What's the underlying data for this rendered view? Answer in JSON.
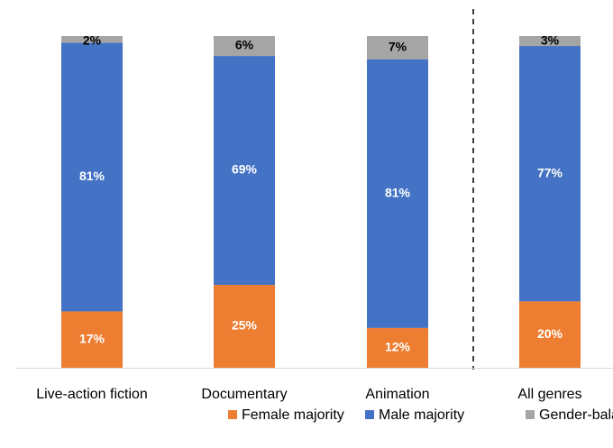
{
  "chart_data": {
    "type": "stacked_bar",
    "categories": [
      "Live-action fiction",
      "Documentary",
      "Animation",
      "All genres"
    ],
    "series": [
      {
        "name": "Female majority",
        "color": "#ED7D31",
        "values": [
          17,
          25,
          12,
          20
        ],
        "value_labels": [
          "17%",
          "25%",
          "12%",
          "20%"
        ],
        "label_color": "#ffffff"
      },
      {
        "name": "Male majority",
        "color": "#4472C4",
        "values": [
          81,
          69,
          81,
          77
        ],
        "value_labels": [
          "81%",
          "69%",
          "81%",
          "77%"
        ],
        "label_color": "#ffffff"
      },
      {
        "name": "Gender-balanced teams",
        "color": "#A5A5A5",
        "values": [
          2,
          6,
          7,
          3
        ],
        "value_labels": [
          "2%",
          "6%",
          "7%",
          "3%"
        ],
        "label_color": "#000000"
      }
    ]
  }
}
